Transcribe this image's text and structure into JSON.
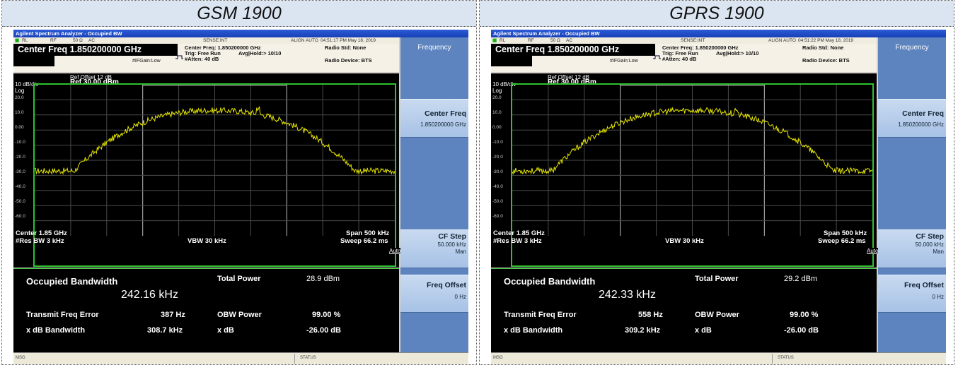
{
  "panels": [
    {
      "title": "GSM 1900",
      "window_title": "Agilent Spectrum Analyzer - Occupied BW",
      "status_row": {
        "rl": "RL",
        "rf": "RF",
        "ohm": "50 Ω",
        "ac": "AC",
        "sense": "SENSE:INT",
        "align": "ALIGN AUTO",
        "datetime": "04:51:17 PM May 18, 2019"
      },
      "center_freq_box": "Center Freq  1.850200000 GHz",
      "info": {
        "center_freq": "Center Freq: 1.850200000 GHz",
        "trig": "Trig: Free Run",
        "avg_hold": "Avg|Hold:> 10/10",
        "atten": "#Atten: 40 dB",
        "ifgain": "#IFGain:Low",
        "radio_std": "Radio Std: None",
        "radio_device": "Radio Device: BTS"
      },
      "trace": {
        "ref_offset": "Ref Offset 12 dB",
        "ref_level": "Ref  30.00 dBm",
        "scale": "10 dB/div",
        "log": "Log",
        "y_ticks": [
          "20.0",
          "10.0",
          "0.00",
          "-10.0",
          "-20.0",
          "-30.0",
          "-40.0",
          "-50.0",
          "-60.0"
        ],
        "center": "Center  1.85 GHz",
        "res_bw": "#Res BW  3 kHz",
        "vbw": "VBW  30 kHz",
        "span": "Span 500 kHz",
        "sweep": "Sweep  66.2 ms"
      },
      "measurement": {
        "occupied_bw_label": "Occupied Bandwidth",
        "occupied_bw_value": "242.16 kHz",
        "total_power_label": "Total Power",
        "total_power_value": "28.9 dBm",
        "tx_freq_error_label": "Transmit Freq Error",
        "tx_freq_error_value": "387 Hz",
        "obw_power_label": "OBW Power",
        "obw_power_value": "99.00 %",
        "xdb_bw_label": "x dB Bandwidth",
        "xdb_bw_value": "308.7 kHz",
        "xdb_label": "x dB",
        "xdb_value": "-26.00 dB"
      },
      "menu": {
        "header": "Frequency",
        "center_freq_label": "Center Freq",
        "center_freq_value": "1.850200000 GHz",
        "cf_step_label": "CF Step",
        "cf_step_value": "50.000 kHz",
        "cf_step_auto": "Auto",
        "cf_step_man": "Man",
        "freq_offset_label": "Freq Offset",
        "freq_offset_value": "0 Hz"
      },
      "msg_bar": {
        "msg": "MSG",
        "status": "STATUS"
      }
    },
    {
      "title": "GPRS 1900",
      "window_title": "Agilent Spectrum Analyzer - Occupied BW",
      "status_row": {
        "rl": "RL",
        "rf": "RF",
        "ohm": "50 Ω",
        "ac": "AC",
        "sense": "SENSE:INT",
        "align": "ALIGN AUTO",
        "datetime": "04:51:22 PM May 18, 2019"
      },
      "center_freq_box": "Center Freq  1.850200000 GHz",
      "info": {
        "center_freq": "Center Freq: 1.850200000 GHz",
        "trig": "Trig: Free Run",
        "avg_hold": "Avg|Hold:> 10/10",
        "atten": "#Atten: 40 dB",
        "ifgain": "#IFGain:Low",
        "radio_std": "Radio Std: None",
        "radio_device": "Radio Device: BTS"
      },
      "trace": {
        "ref_offset": "Ref Offset 12 dB",
        "ref_level": "Ref  30.00 dBm",
        "scale": "10 dB/div",
        "log": "Log",
        "y_ticks": [
          "20.0",
          "10.0",
          "0.00",
          "-10.0",
          "-20.0",
          "-30.0",
          "-40.0",
          "-50.0",
          "-60.0"
        ],
        "center": "Center  1.85 GHz",
        "res_bw": "#Res BW  3 kHz",
        "vbw": "VBW  30 kHz",
        "span": "Span 500 kHz",
        "sweep": "Sweep  66.2 ms"
      },
      "measurement": {
        "occupied_bw_label": "Occupied Bandwidth",
        "occupied_bw_value": "242.33 kHz",
        "total_power_label": "Total Power",
        "total_power_value": "29.2 dBm",
        "tx_freq_error_label": "Transmit Freq Error",
        "tx_freq_error_value": "558 Hz",
        "obw_power_label": "OBW Power",
        "obw_power_value": "99.00 %",
        "xdb_bw_label": "x dB Bandwidth",
        "xdb_bw_value": "309.2 kHz",
        "xdb_label": "x dB",
        "xdb_value": "-26.00 dB"
      },
      "menu": {
        "header": "Frequency",
        "center_freq_label": "Center Freq",
        "center_freq_value": "1.850200000 GHz",
        "cf_step_label": "CF Step",
        "cf_step_value": "50.000 kHz",
        "cf_step_auto": "Auto",
        "cf_step_man": "Man",
        "freq_offset_label": "Freq Offset",
        "freq_offset_value": "0 Hz"
      },
      "msg_bar": {
        "msg": "MSG",
        "status": "STATUS"
      }
    }
  ],
  "colors": {
    "trace": "#e6e600",
    "graticule_border": "#2ec22e",
    "menu_bg": "#5d84bf",
    "title_bg": "#dbe5f1"
  }
}
